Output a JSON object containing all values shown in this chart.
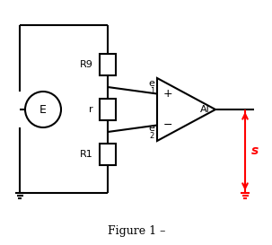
{
  "title": "Figure 1 –",
  "background": "#ffffff",
  "line_color": "#000000",
  "red_color": "#ff0000",
  "label_E": "E",
  "label_r": "r",
  "label_R9": "R9",
  "label_R1": "R1",
  "label_e1": "e",
  "label_e1_sub": "1",
  "label_e2": "e",
  "label_e2_sub": "2",
  "label_AI": "Al",
  "label_s": "s",
  "fig_w": 3.03,
  "fig_h": 2.73,
  "dpi": 100
}
